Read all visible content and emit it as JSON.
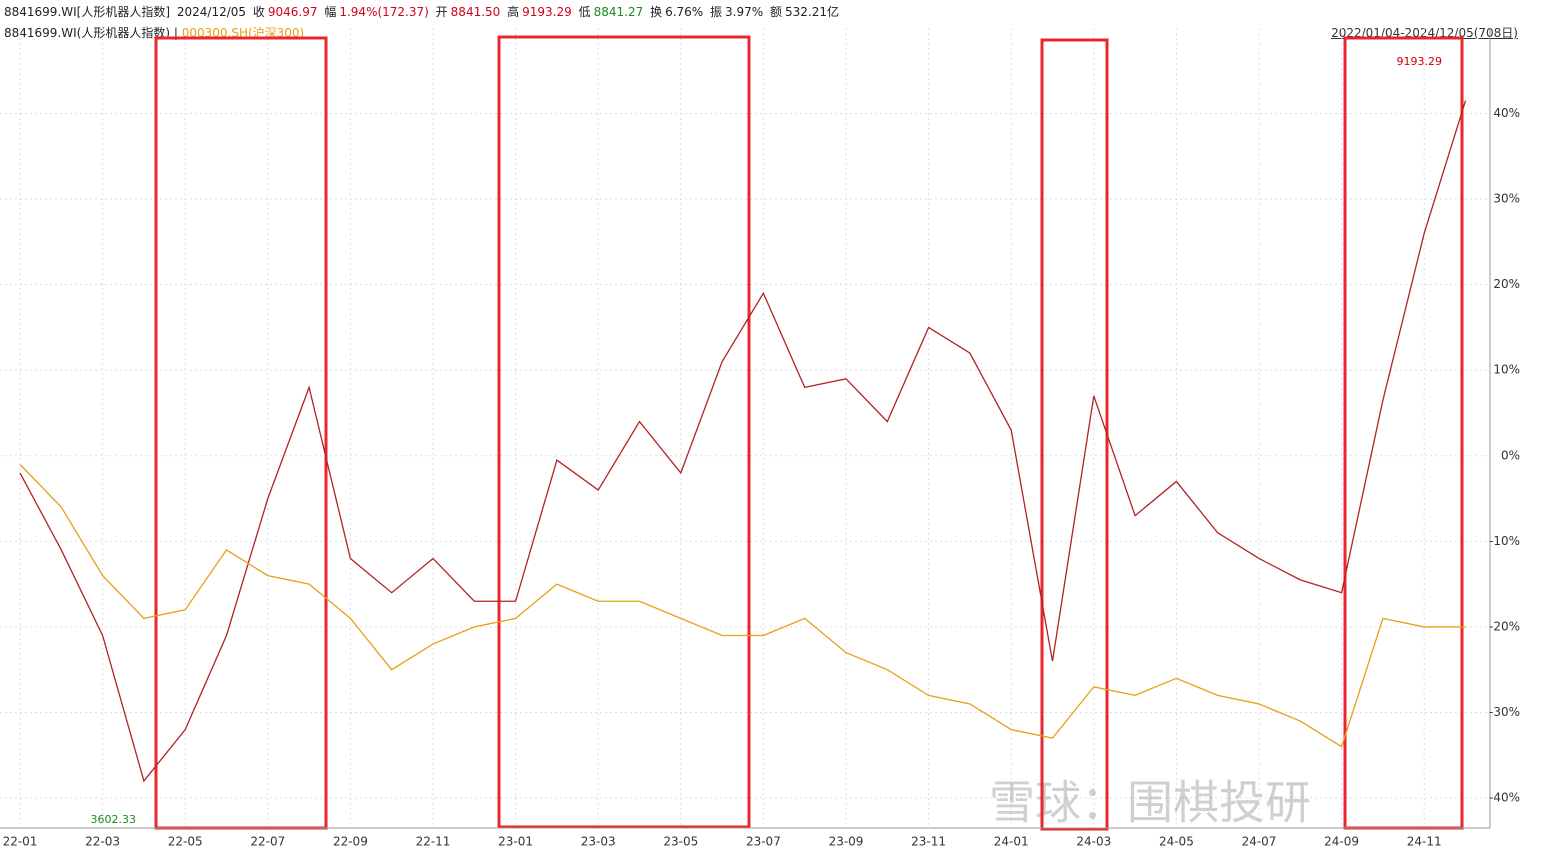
{
  "header": {
    "code": "8841699.WI[人形机器人指数]",
    "date": "2024/12/05",
    "items": [
      {
        "label": "收",
        "value": "9046.97"
      },
      {
        "label": "幅",
        "value": "1.94%(172.37)"
      },
      {
        "label": "开",
        "value": "8841.50"
      },
      {
        "label": "高",
        "value": "9193.29"
      },
      {
        "label": "低",
        "value": "8841.27"
      },
      {
        "label": "换",
        "value": "6.76%"
      },
      {
        "label": "振",
        "value": "3.97%"
      },
      {
        "label": "额",
        "value": "532.21亿"
      }
    ],
    "range": "2022/01/04-2024/12/05(708日)"
  },
  "chart_data": {
    "type": "line",
    "categories": [
      "22-01",
      null,
      "22-03",
      null,
      "22-05",
      null,
      "22-07",
      null,
      "22-09",
      null,
      "22-11",
      null,
      "23-01",
      null,
      "23-03",
      null,
      "23-05",
      null,
      "23-07",
      null,
      "23-09",
      null,
      "23-11",
      null,
      "24-01",
      null,
      "24-03",
      null,
      "24-05",
      null,
      "24-07",
      null,
      "24-09",
      null,
      "24-11",
      null
    ],
    "series": [
      {
        "name": "8841699.WI(人形机器人指数)",
        "color": "#b22222",
        "values": [
          -2,
          -11,
          -21,
          -38,
          -32,
          -21,
          -5,
          8,
          -12,
          -16,
          -12,
          -17,
          -17,
          -0.5,
          -4,
          4,
          -2,
          11,
          19,
          8,
          9,
          4,
          15,
          12,
          3,
          -24,
          7,
          -7,
          -3,
          -9,
          -12,
          -14.5,
          -16,
          6.5,
          26,
          41.5
        ]
      },
      {
        "name": "000300.SH(沪深300)",
        "color": "#e6a117",
        "values": [
          -1,
          -6,
          -14,
          -19,
          -18,
          -11,
          -14,
          -15,
          -19,
          -25,
          -22,
          -20,
          -19,
          -15,
          -17,
          -17,
          -19,
          -21,
          -21,
          -19,
          -23,
          -25,
          -28,
          -29,
          -32,
          -33,
          -27,
          -28,
          -26,
          -28,
          -29,
          -31,
          -34,
          -19,
          -20,
          -20
        ]
      }
    ],
    "ylim": [
      -43.5,
      50
    ],
    "yticks": [
      {
        "value": -40,
        "label": "-40%"
      },
      {
        "value": -30,
        "label": "-30%"
      },
      {
        "value": -20,
        "label": "-20%"
      },
      {
        "value": -10,
        "label": "-10%"
      },
      {
        "value": 0,
        "label": "0%"
      },
      {
        "value": 10,
        "label": "10%"
      },
      {
        "value": 20,
        "label": "20%"
      },
      {
        "value": 30,
        "label": "30%"
      },
      {
        "value": 40,
        "label": "40%"
      }
    ],
    "grid": true,
    "annotations": [
      "9193.29",
      "3602.33"
    ],
    "watermark": "雪球：围棋投研"
  }
}
